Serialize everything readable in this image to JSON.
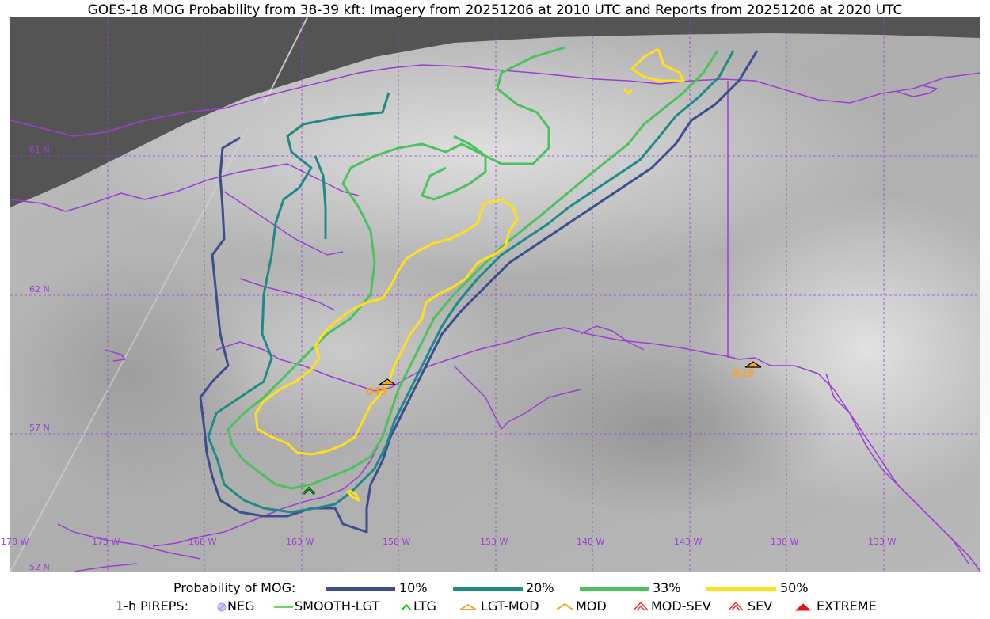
{
  "title": "GOES-18 MOG Probability from 38-39 kft: Imagery from 20251206 at 2010 UTC and Reports from 20251206 at 2020 UTC",
  "map": {
    "lat_labels": [
      "61 N",
      "62 N",
      "57 N",
      "52 N"
    ],
    "lon_labels": [
      "178 W",
      "173 W",
      "168 W",
      "163 W",
      "158 W",
      "153 W",
      "148 W",
      "143 W",
      "138 W",
      "133 W"
    ],
    "pirep_labels": [
      "045",
      "029"
    ],
    "colors": {
      "graticule": "#9b3fd4",
      "coast": "#9b3fd4",
      "space": "#545454",
      "p10": "#3b4f8f",
      "p20": "#1f8a86",
      "p33": "#4cc25c",
      "p50": "#ffe01a",
      "pirep_label": "#f2a52b"
    }
  },
  "legend": {
    "prob_title": "Probability of MOG:",
    "prob_items": [
      {
        "label": "10%",
        "color": "#3b4f8f"
      },
      {
        "label": "20%",
        "color": "#1f8a86"
      },
      {
        "label": "33%",
        "color": "#4cc25c"
      },
      {
        "label": "50%",
        "color": "#ffe01a"
      }
    ],
    "pirep_title": "1-h PIREPS:",
    "pirep_items": [
      {
        "label": "NEG",
        "icon": "neg-icon",
        "color": "#b0b0f0"
      },
      {
        "label": "SMOOTH-LGT",
        "icon": "smooth-lgt-icon",
        "color": "#33cc33"
      },
      {
        "label": "LTG",
        "icon": "ltg-icon",
        "color": "#00cc00"
      },
      {
        "label": "LGT-MOD",
        "icon": "lgt-mod-icon",
        "color": "#f2a52b"
      },
      {
        "label": "MOD",
        "icon": "mod-icon",
        "color": "#f2a52b"
      },
      {
        "label": "MOD-SEV",
        "icon": "mod-sev-icon",
        "color": "#e83030"
      },
      {
        "label": "SEV",
        "icon": "sev-icon",
        "color": "#e83030"
      },
      {
        "label": "EXTREME",
        "icon": "extreme-icon",
        "color": "#e81010"
      }
    ]
  }
}
